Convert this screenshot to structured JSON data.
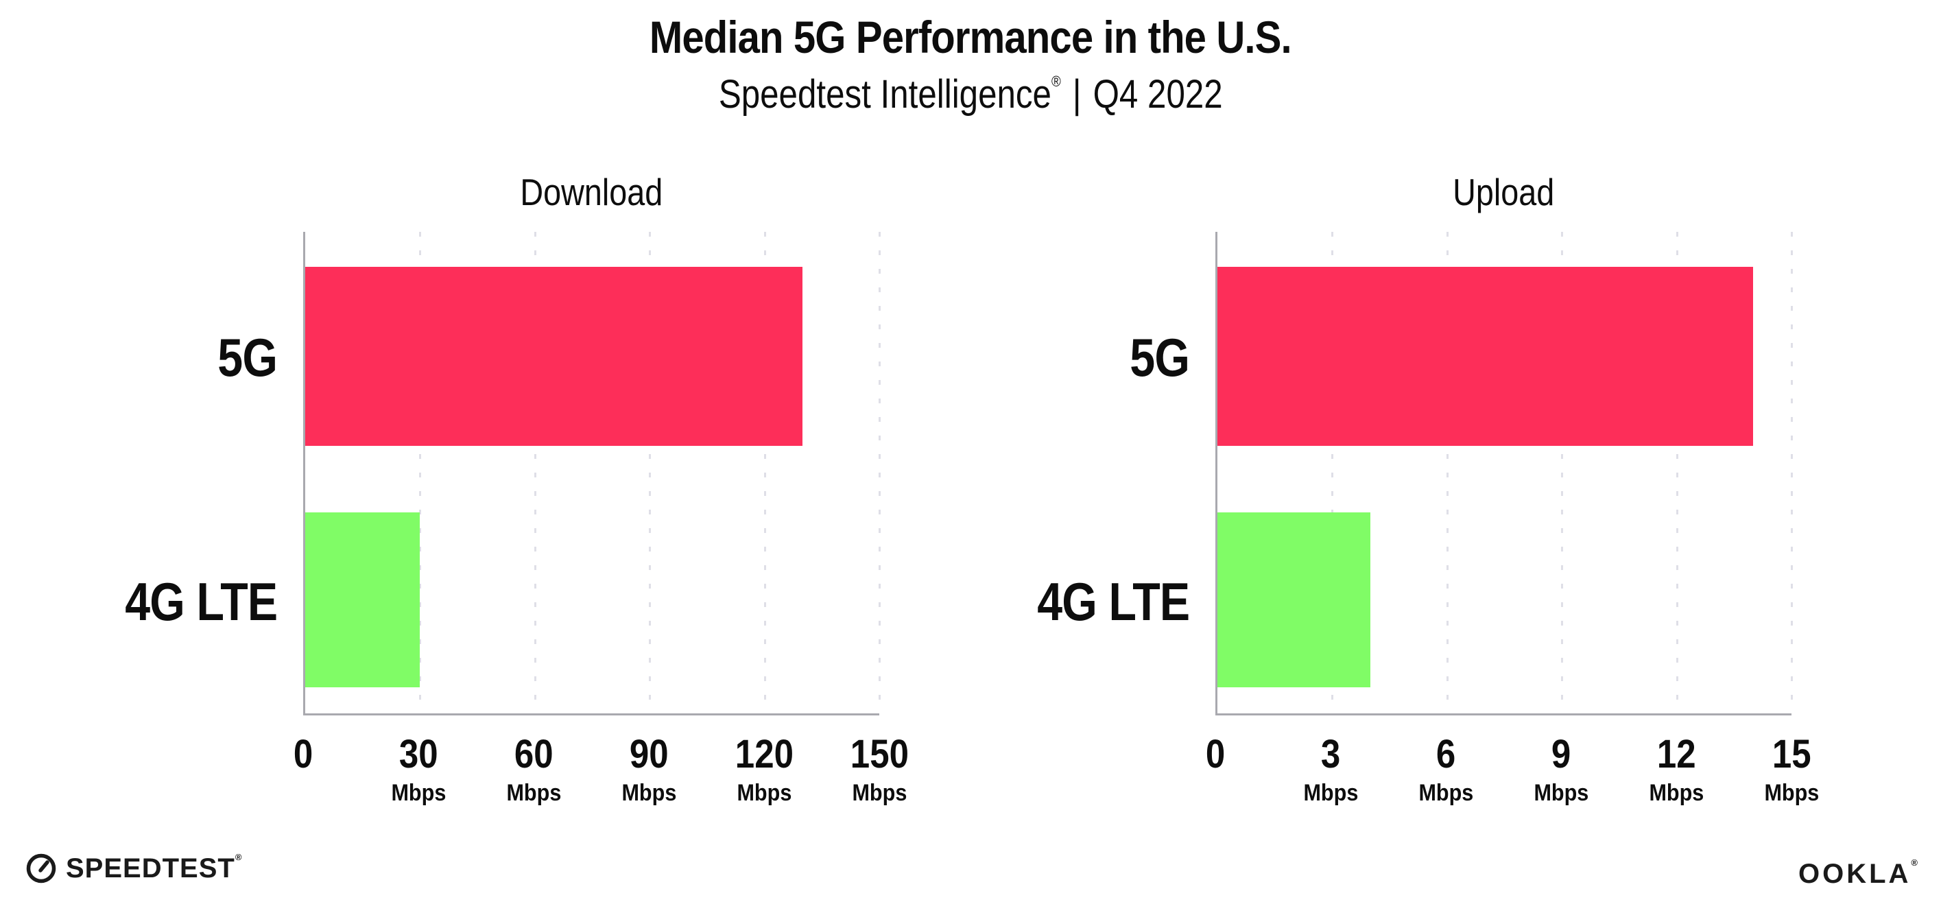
{
  "header": {
    "title": "Median 5G Performance in the U.S.",
    "subtitle": {
      "brand": "Speedtest Intelligence",
      "reg_mark": "®",
      "separator": "|",
      "period": "Q4 2022"
    }
  },
  "chart_data": [
    {
      "type": "bar",
      "orientation": "horizontal",
      "title": "Download",
      "categories": [
        "5G",
        "4G LTE"
      ],
      "values": [
        130,
        30
      ],
      "xlim": [
        0,
        150
      ],
      "xticks": [
        0,
        30,
        60,
        90,
        120,
        150
      ],
      "xtick_unit": "Mbps",
      "series_colors": [
        "#fd2e59",
        "#80fc66"
      ],
      "grid": "vertical-dotted",
      "legend": "none"
    },
    {
      "type": "bar",
      "orientation": "horizontal",
      "title": "Upload",
      "categories": [
        "5G",
        "4G LTE"
      ],
      "values": [
        14,
        4
      ],
      "xlim": [
        0,
        15
      ],
      "xticks": [
        0,
        3,
        6,
        9,
        12,
        15
      ],
      "xtick_unit": "Mbps",
      "series_colors": [
        "#fd2e59",
        "#80fc66"
      ],
      "grid": "vertical-dotted",
      "legend": "none"
    }
  ],
  "footer": {
    "speedtest": {
      "label": "SPEEDTEST",
      "mark": "®"
    },
    "ookla": {
      "label": "OOKLA",
      "mark": "®"
    }
  },
  "colors": {
    "bar_5g": "#fd2e59",
    "bar_4g_lte": "#80fc66",
    "axis": "#a9a9af",
    "gridline": "#dfdfe7",
    "text": "#0d0d0d"
  }
}
